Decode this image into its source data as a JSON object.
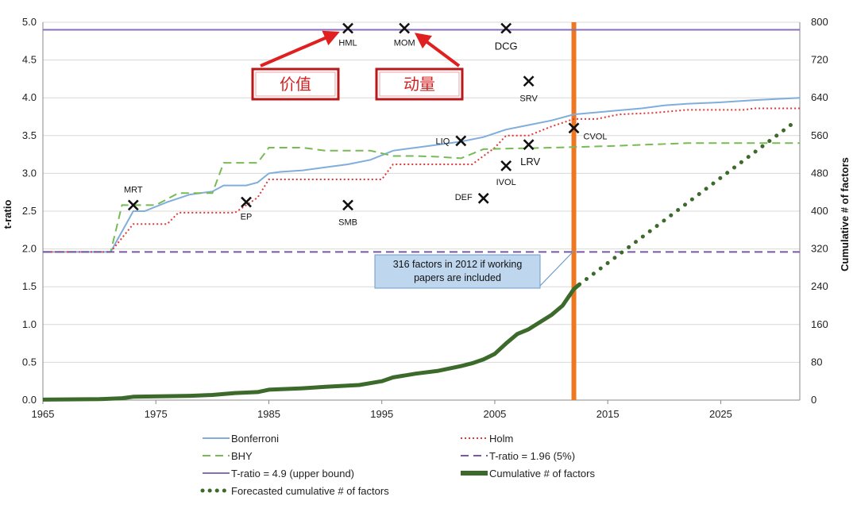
{
  "chart_data": {
    "type": "line",
    "xlim": [
      1965,
      2032
    ],
    "x_ticks": [
      1965,
      1975,
      1985,
      1995,
      2005,
      2015,
      2025
    ],
    "y_left": {
      "label": "t-ratio",
      "lim": [
        0.0,
        5.0
      ],
      "ticks": [
        "0.0",
        "0.5",
        "1.0",
        "1.5",
        "2.0",
        "2.5",
        "3.0",
        "3.5",
        "4.0",
        "4.5",
        "5.0"
      ]
    },
    "y_right": {
      "label": "Cumulative # of factors",
      "lim": [
        0,
        800
      ],
      "ticks": [
        "0",
        "80",
        "160",
        "240",
        "320",
        "400",
        "480",
        "560",
        "640",
        "720",
        "800"
      ]
    },
    "grid": "horizontal",
    "legend_placement": "bottom",
    "series": [
      {
        "name": "Bonferroni",
        "axis": "left",
        "color": "#7faedc",
        "style": "solid",
        "points": [
          [
            1965,
            1.96
          ],
          [
            1971,
            1.96
          ],
          [
            1973,
            2.5
          ],
          [
            1974,
            2.5
          ],
          [
            1976,
            2.62
          ],
          [
            1978,
            2.72
          ],
          [
            1980,
            2.76
          ],
          [
            1981,
            2.84
          ],
          [
            1983,
            2.84
          ],
          [
            1984,
            2.88
          ],
          [
            1985,
            3.0
          ],
          [
            1986,
            3.02
          ],
          [
            1988,
            3.04
          ],
          [
            1990,
            3.08
          ],
          [
            1992,
            3.12
          ],
          [
            1994,
            3.18
          ],
          [
            1996,
            3.3
          ],
          [
            1998,
            3.34
          ],
          [
            2000,
            3.38
          ],
          [
            2002,
            3.42
          ],
          [
            2004,
            3.48
          ],
          [
            2006,
            3.58
          ],
          [
            2008,
            3.64
          ],
          [
            2010,
            3.7
          ],
          [
            2012,
            3.78
          ],
          [
            2015,
            3.82
          ],
          [
            2018,
            3.86
          ],
          [
            2020,
            3.9
          ],
          [
            2022,
            3.92
          ],
          [
            2025,
            3.94
          ],
          [
            2028,
            3.97
          ],
          [
            2032,
            4.0
          ]
        ]
      },
      {
        "name": "Holm",
        "axis": "left",
        "color": "#e03a3a",
        "style": "dotted",
        "points": [
          [
            1965,
            1.96
          ],
          [
            1971,
            1.96
          ],
          [
            1973,
            2.33
          ],
          [
            1976,
            2.33
          ],
          [
            1977,
            2.48
          ],
          [
            1982,
            2.48
          ],
          [
            1984,
            2.68
          ],
          [
            1985,
            2.92
          ],
          [
            1995,
            2.92
          ],
          [
            1996,
            3.12
          ],
          [
            2003,
            3.12
          ],
          [
            2005,
            3.34
          ],
          [
            2006,
            3.5
          ],
          [
            2008,
            3.5
          ],
          [
            2010,
            3.62
          ],
          [
            2012,
            3.72
          ],
          [
            2014,
            3.72
          ],
          [
            2016,
            3.78
          ],
          [
            2019,
            3.8
          ],
          [
            2022,
            3.84
          ],
          [
            2027,
            3.84
          ],
          [
            2028,
            3.86
          ],
          [
            2032,
            3.86
          ]
        ]
      },
      {
        "name": "BHY",
        "axis": "left",
        "color": "#77bb55",
        "style": "dashed",
        "points": [
          [
            1965,
            1.96
          ],
          [
            1971,
            1.96
          ],
          [
            1972,
            2.58
          ],
          [
            1975,
            2.58
          ],
          [
            1977,
            2.74
          ],
          [
            1980,
            2.74
          ],
          [
            1981,
            3.14
          ],
          [
            1984,
            3.14
          ],
          [
            1985,
            3.34
          ],
          [
            1988,
            3.34
          ],
          [
            1990,
            3.3
          ],
          [
            1994,
            3.3
          ],
          [
            1996,
            3.23
          ],
          [
            1998,
            3.23
          ],
          [
            2000,
            3.22
          ],
          [
            2002,
            3.2
          ],
          [
            2004,
            3.32
          ],
          [
            2010,
            3.34
          ],
          [
            2015,
            3.36
          ],
          [
            2022,
            3.4
          ],
          [
            2032,
            3.4
          ]
        ]
      },
      {
        "name": "T-ratio = 1.96 (5%)",
        "axis": "left",
        "color": "#7a58a8",
        "style": "dashed",
        "points": [
          [
            1965,
            1.96
          ],
          [
            2032,
            1.96
          ]
        ]
      },
      {
        "name": "T-ratio = 4.9 (upper bound)",
        "axis": "left",
        "color": "#8870b8",
        "style": "solid",
        "points": [
          [
            1965,
            4.9
          ],
          [
            2032,
            4.9
          ]
        ]
      },
      {
        "name": "Cumulative # of factors",
        "axis": "right",
        "color": "#3c6a2a",
        "style": "thick",
        "points": [
          [
            1965,
            1
          ],
          [
            1970,
            2
          ],
          [
            1972,
            4
          ],
          [
            1973,
            7
          ],
          [
            1978,
            9
          ],
          [
            1980,
            11
          ],
          [
            1982,
            15
          ],
          [
            1984,
            17
          ],
          [
            1985,
            22
          ],
          [
            1988,
            25
          ],
          [
            1990,
            28
          ],
          [
            1993,
            32
          ],
          [
            1995,
            40
          ],
          [
            1996,
            48
          ],
          [
            1998,
            56
          ],
          [
            2000,
            62
          ],
          [
            2002,
            72
          ],
          [
            2003,
            78
          ],
          [
            2004,
            86
          ],
          [
            2005,
            98
          ],
          [
            2006,
            120
          ],
          [
            2007,
            140
          ],
          [
            2008,
            150
          ],
          [
            2009,
            165
          ],
          [
            2010,
            180
          ],
          [
            2011,
            200
          ],
          [
            2012,
            235
          ],
          [
            2012.5,
            245
          ]
        ]
      },
      {
        "name": "Forecasted cumulative # of factors",
        "axis": "right",
        "color": "#3c6a2a",
        "style": "dots",
        "points": [
          [
            2012.5,
            245
          ],
          [
            2031.5,
            588
          ]
        ]
      }
    ],
    "markers": [
      {
        "label": "HML",
        "x": 1992,
        "y": 4.92
      },
      {
        "label": "MOM",
        "x": 1997,
        "y": 4.92
      },
      {
        "label": "DCG",
        "x": 2006,
        "y": 4.92
      },
      {
        "label": "SRV",
        "x": 2008,
        "y": 4.22
      },
      {
        "label": "LIQ",
        "x": 2002,
        "y": 3.43
      },
      {
        "label": "CVOL",
        "x": 2012,
        "y": 3.6
      },
      {
        "label": "LRV",
        "x": 2008,
        "y": 3.38
      },
      {
        "label": "IVOL",
        "x": 2006,
        "y": 3.1
      },
      {
        "label": "MRT",
        "x": 1973,
        "y": 2.58
      },
      {
        "label": "EP",
        "x": 1983,
        "y": 2.62
      },
      {
        "label": "SMB",
        "x": 1992,
        "y": 2.58
      },
      {
        "label": "DEF",
        "x": 2004,
        "y": 2.67
      }
    ],
    "vertical_line": {
      "x": 2012,
      "color": "#ee7722"
    },
    "callout": {
      "lines": [
        "316  factors in 2012 if  working",
        "papers are included"
      ],
      "target": {
        "x": 2012,
        "y": 316
      }
    },
    "annotations": [
      {
        "text": "价值",
        "points_to": "HML"
      },
      {
        "text": "动量",
        "points_to": "MOM"
      }
    ],
    "legend": [
      {
        "label": "Bonferroni",
        "series": 0
      },
      {
        "label": "Holm",
        "series": 1
      },
      {
        "label": "BHY",
        "series": 2
      },
      {
        "label": "T-ratio = 1.96 (5%)",
        "series": 3
      },
      {
        "label": "T-ratio = 4.9 (upper bound)",
        "series": 4
      },
      {
        "label": "Cumulative # of factors",
        "series": 5
      },
      {
        "label": "Forecasted cumulative # of factors",
        "series": 6
      }
    ]
  }
}
